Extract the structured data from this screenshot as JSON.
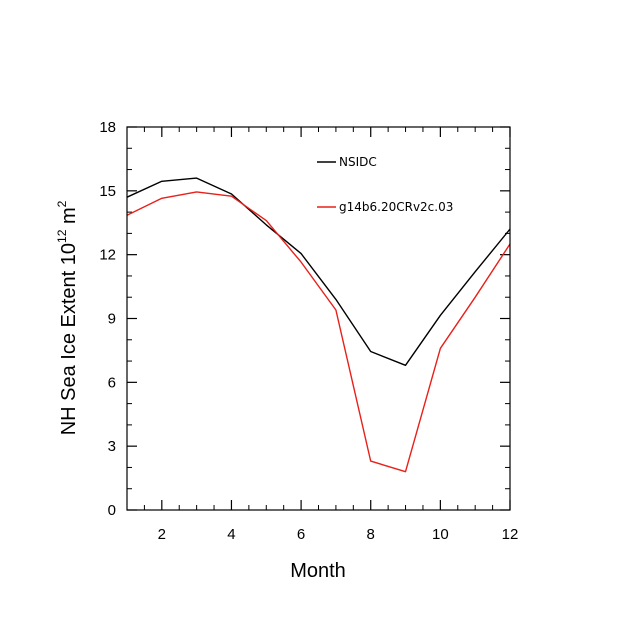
{
  "chart_data": {
    "type": "line",
    "title": "",
    "xlabel": "Month",
    "ylabel": {
      "base": "NH Sea Ice Extent 10",
      "sup1": "12",
      "mid": " m",
      "sup2": "2"
    },
    "xlim": [
      1,
      12
    ],
    "ylim": [
      0,
      18
    ],
    "xticks": [
      2,
      4,
      6,
      8,
      10,
      12
    ],
    "yticks": [
      0,
      3,
      6,
      9,
      12,
      15,
      18
    ],
    "x": [
      1,
      2,
      3,
      4,
      5,
      6,
      7,
      8,
      9,
      10,
      11,
      12
    ],
    "legend_position": "top-right",
    "series": [
      {
        "name": "NSIDC",
        "color": "#000000",
        "values": [
          14.7,
          15.45,
          15.6,
          14.85,
          13.4,
          12.05,
          9.9,
          7.45,
          6.8,
          9.15,
          11.2,
          13.2
        ]
      },
      {
        "name": "g14b6.20CRv2c.03",
        "color": "#e8201a",
        "values": [
          13.85,
          14.65,
          14.95,
          14.75,
          13.6,
          11.65,
          9.4,
          2.3,
          1.8,
          7.6,
          10.0,
          12.5
        ]
      }
    ]
  }
}
